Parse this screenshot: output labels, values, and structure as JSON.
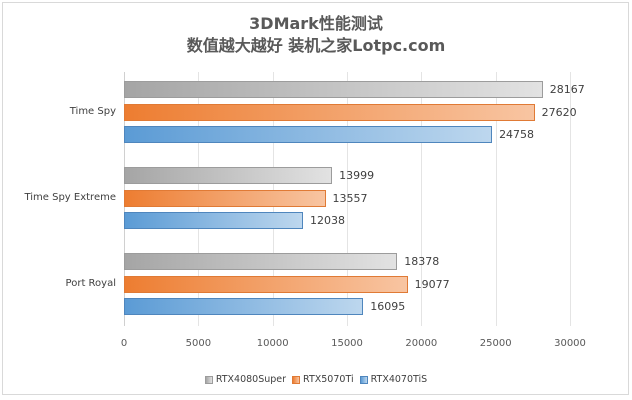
{
  "chart_data": {
    "type": "bar",
    "orientation": "horizontal",
    "title": "3DMark性能测试",
    "subtitle": "数值越大越好 装机之家Lotpc.com",
    "categories": [
      "Time Spy",
      "Time Spy Extreme",
      "Port Royal"
    ],
    "series": [
      {
        "name": "RTX4080Super",
        "color": "#a5a5a5",
        "values": [
          28167,
          13999,
          18378
        ]
      },
      {
        "name": "RTX5070Ti",
        "color": "#ed7d31",
        "values": [
          27620,
          13557,
          19077
        ]
      },
      {
        "name": "RTX4070TiS",
        "color": "#5b9bd5",
        "values": [
          24758,
          12038,
          16095
        ]
      }
    ],
    "xlabel": "",
    "ylabel": "",
    "xlim": [
      0,
      30000
    ],
    "xticks": [
      "0",
      "5000",
      "10000",
      "15000",
      "20000",
      "25000",
      "30000"
    ],
    "grid": true,
    "legend_position": "bottom",
    "data_labels": true
  }
}
